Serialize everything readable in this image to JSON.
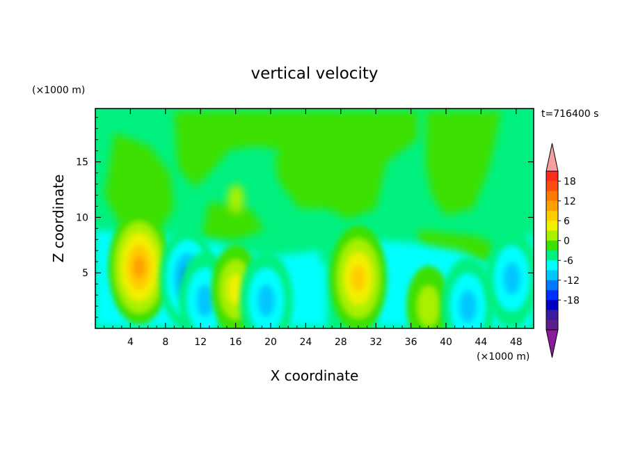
{
  "chart_data": {
    "type": "heatmap",
    "title": "vertical velocity",
    "time_label": "t=716400 s",
    "xlabel": "X coordinate",
    "ylabel": "Z coordinate",
    "x_unit": "(×1000 m)",
    "y_unit": "(×1000 m)",
    "xlim": [
      0,
      50
    ],
    "ylim": [
      0,
      19.8
    ],
    "xticks": [
      4,
      8,
      12,
      16,
      20,
      24,
      28,
      32,
      36,
      40,
      44,
      48
    ],
    "yticks": [
      5,
      10,
      15
    ],
    "grid": false,
    "colorbar": {
      "ticks": [
        18,
        12,
        6,
        0,
        -6,
        -12,
        -18
      ],
      "levels": [
        21,
        18,
        15,
        12,
        9,
        6,
        3,
        0,
        -3,
        -6,
        -9,
        -12,
        -15,
        -18,
        -21
      ],
      "colors": [
        "#ff2a1e",
        "#ff4a10",
        "#ff7a00",
        "#ffa000",
        "#ffcc00",
        "#f0f000",
        "#a8f000",
        "#3ee000",
        "#00f080",
        "#00ffff",
        "#00c8ff",
        "#0078ff",
        "#0030ff",
        "#0000c0",
        "#3a1a9e",
        "#5a1f8c"
      ],
      "extend_top_color": "#f4a0a0",
      "extend_bottom_color": "#8b1a9e"
    },
    "features": [
      {
        "x": 5.0,
        "z": 5.5,
        "w": 14
      },
      {
        "x": 10.5,
        "z": 4.5,
        "w": -11
      },
      {
        "x": 12.5,
        "z": 2.5,
        "w": -10
      },
      {
        "x": 16.0,
        "z": 3.5,
        "w": 8
      },
      {
        "x": 19.5,
        "z": 2.5,
        "w": -10
      },
      {
        "x": 30.0,
        "z": 4.5,
        "w": 12
      },
      {
        "x": 38.0,
        "z": 2.0,
        "w": 6
      },
      {
        "x": 42.5,
        "z": 2.0,
        "w": -10
      },
      {
        "x": 47.5,
        "z": 4.5,
        "w": -10
      }
    ]
  }
}
